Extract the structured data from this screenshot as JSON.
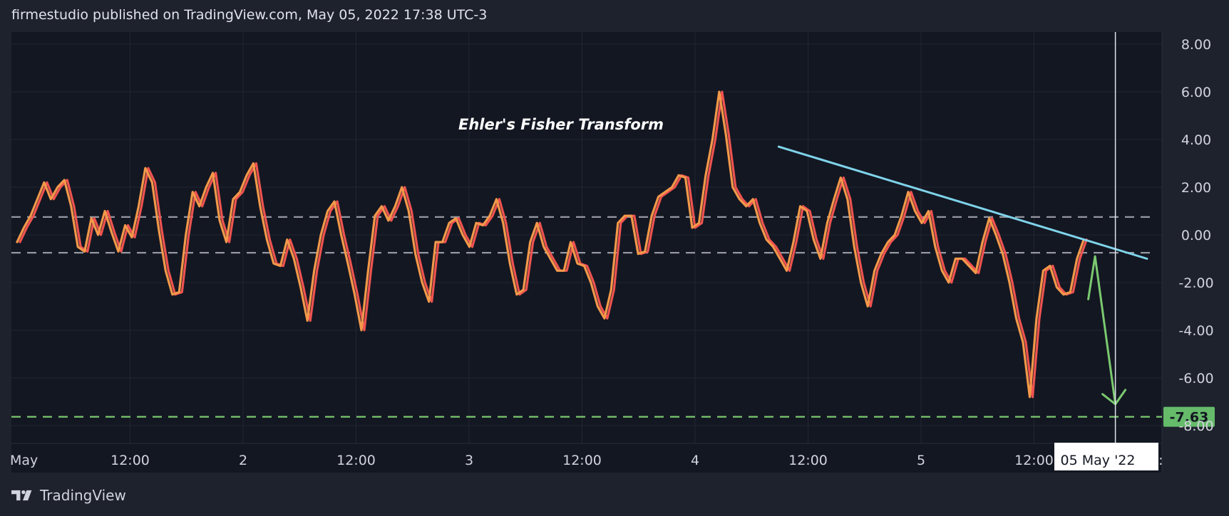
{
  "header": {
    "text": "firmestudio published on TradingView.com, May 05, 2022 17:38 UTC-3"
  },
  "footer": {
    "brand": "TradingView"
  },
  "colors": {
    "background": "#131722",
    "frame": "#1e222d",
    "fisher": "#f2994a",
    "trigger": "#ef5350",
    "trendline": "#7fd3ea",
    "arrow": "#7bc96f",
    "level_dashed": "#9598a1",
    "price_line": "#7bc96f",
    "price_label_bg": "#66bb6a"
  },
  "chart_data": {
    "type": "line",
    "title": "Ehler's Fisher Transform",
    "ylim": [
      -8,
      8
    ],
    "y_ticks": [
      "8.00",
      "6.00",
      "4.00",
      "2.00",
      "0.00",
      "-2.00",
      "-4.00",
      "-6.00",
      "-8.00"
    ],
    "x_ticks": [
      "May",
      "12:00",
      "2",
      "12:00",
      "3",
      "12:00",
      "4",
      "12:00",
      "5",
      "12:00"
    ],
    "x_tick_partial": "21:",
    "x_cursor_label": "05 May '22",
    "levels": [
      0.75,
      -0.75
    ],
    "price_line": {
      "value": -7.63,
      "label": "-7.63"
    },
    "series": [
      {
        "values": [
          -0.3,
          0.3,
          0.8,
          1.5,
          2.2,
          1.5,
          2.0,
          2.3,
          1.2,
          -0.5,
          -0.7,
          0.7,
          0.0,
          1.0,
          0.1,
          -0.7,
          0.4,
          -0.1,
          1.2,
          2.8,
          2.2,
          0.2,
          -1.5,
          -2.5,
          -2.4,
          0.0,
          1.8,
          1.2,
          2.0,
          2.6,
          0.6,
          -0.3,
          1.5,
          1.8,
          2.5,
          3.0,
          1.2,
          -0.2,
          -1.2,
          -1.3,
          -0.2,
          -1.0,
          -2.2,
          -3.6,
          -1.5,
          0.0,
          1.0,
          1.4,
          0.0,
          -1.2,
          -2.5,
          -4.0,
          -1.5,
          0.8,
          1.2,
          0.6,
          1.2,
          2.0,
          1.0,
          -0.8,
          -2.0,
          -2.8,
          -0.3,
          -0.3,
          0.5,
          0.7,
          0.0,
          -0.5,
          0.5,
          0.4,
          0.8,
          1.5,
          0.5,
          -1.2,
          -2.5,
          -2.3,
          -0.3,
          0.5,
          -0.5,
          -1.0,
          -1.5,
          -1.5,
          -0.3,
          -1.2,
          -1.3,
          -2.0,
          -3.0,
          -3.5,
          -2.3,
          0.5,
          0.8,
          0.8,
          -0.8,
          -0.7,
          0.8,
          1.6,
          1.8,
          2.0,
          2.5,
          2.4,
          0.3,
          0.5,
          2.5,
          4.0,
          6.0,
          4.2,
          2.0,
          1.5,
          1.2,
          1.5,
          0.5,
          -0.2,
          -0.5,
          -1.0,
          -1.5,
          -0.3,
          1.2,
          1.0,
          -0.2,
          -1.0,
          0.5,
          1.5,
          2.4,
          1.5,
          -0.5,
          -2.0,
          -3.0,
          -1.5,
          -0.8,
          -0.3,
          0.0,
          0.8,
          1.8,
          1.0,
          0.5,
          1.0,
          -0.5,
          -1.5,
          -2.0,
          -1.0,
          -1.0,
          -1.3,
          -1.6,
          -0.3,
          0.7,
          0.0,
          -0.8,
          -2.0,
          -3.5,
          -4.5,
          -6.8,
          -3.5,
          -1.5,
          -1.3,
          -2.2,
          -2.5,
          -2.4,
          -1.0,
          -0.2
        ],
        "x_start": 0.0,
        "x_end": 4.72
      }
    ],
    "trendline": {
      "x": [
        3.37,
        5.0
      ],
      "y": [
        3.7,
        -1.0
      ]
    },
    "arrow": {
      "x": [
        4.74,
        4.77,
        4.86
      ],
      "y": [
        -2.7,
        -0.9,
        -7.1
      ]
    },
    "cursor_x": 4.86
  }
}
